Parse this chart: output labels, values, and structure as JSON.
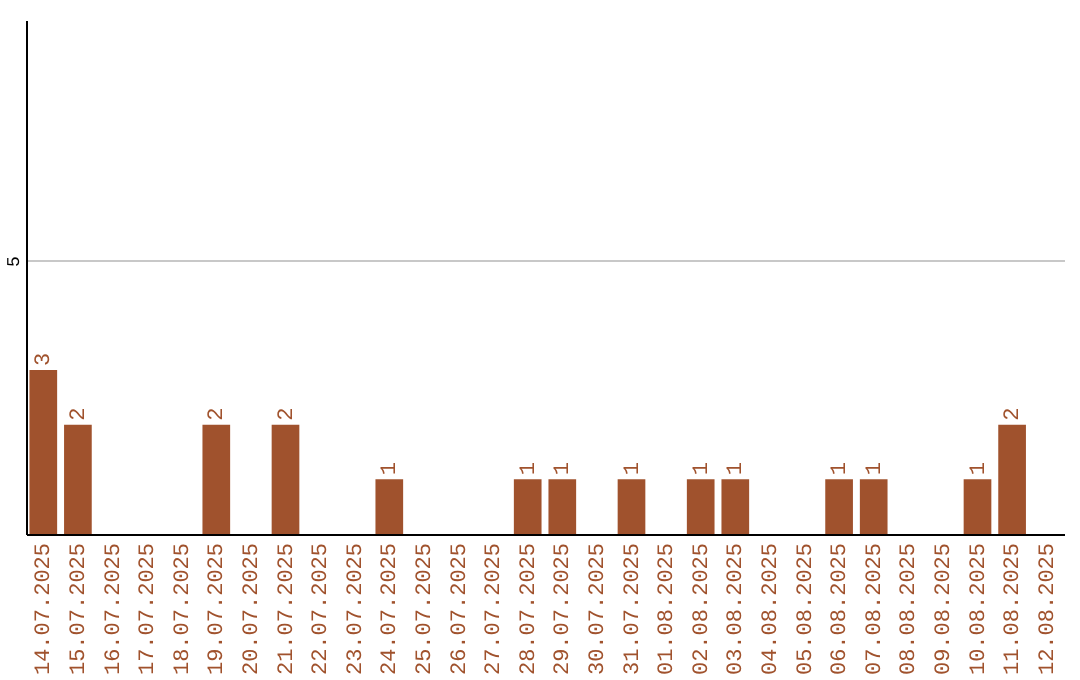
{
  "chart_data": {
    "type": "bar",
    "categories": [
      "14.07.2025",
      "15.07.2025",
      "16.07.2025",
      "17.07.2025",
      "18.07.2025",
      "19.07.2025",
      "20.07.2025",
      "21.07.2025",
      "22.07.2025",
      "23.07.2025",
      "24.07.2025",
      "25.07.2025",
      "26.07.2025",
      "27.07.2025",
      "28.07.2025",
      "29.07.2025",
      "30.07.2025",
      "31.07.2025",
      "01.08.2025",
      "02.08.2025",
      "03.08.2025",
      "04.08.2025",
      "05.08.2025",
      "06.08.2025",
      "07.08.2025",
      "08.08.2025",
      "09.08.2025",
      "10.08.2025",
      "11.08.2025",
      "12.08.2025"
    ],
    "values": [
      3,
      2,
      0,
      0,
      0,
      2,
      0,
      2,
      0,
      0,
      1,
      0,
      0,
      0,
      1,
      1,
      0,
      1,
      0,
      1,
      1,
      0,
      0,
      1,
      1,
      0,
      0,
      1,
      2,
      0
    ],
    "value_labels": [
      "3",
      "2",
      null,
      null,
      null,
      "2",
      null,
      "2",
      null,
      null,
      "1",
      null,
      null,
      null,
      "1",
      "1",
      null,
      "1",
      null,
      "1",
      "1",
      null,
      null,
      "1",
      "1",
      null,
      null,
      "1",
      "2",
      null
    ],
    "color": "#a0522d",
    "ylim": [
      0,
      9.4
    ],
    "yticks": [
      5
    ],
    "grid": "y"
  }
}
